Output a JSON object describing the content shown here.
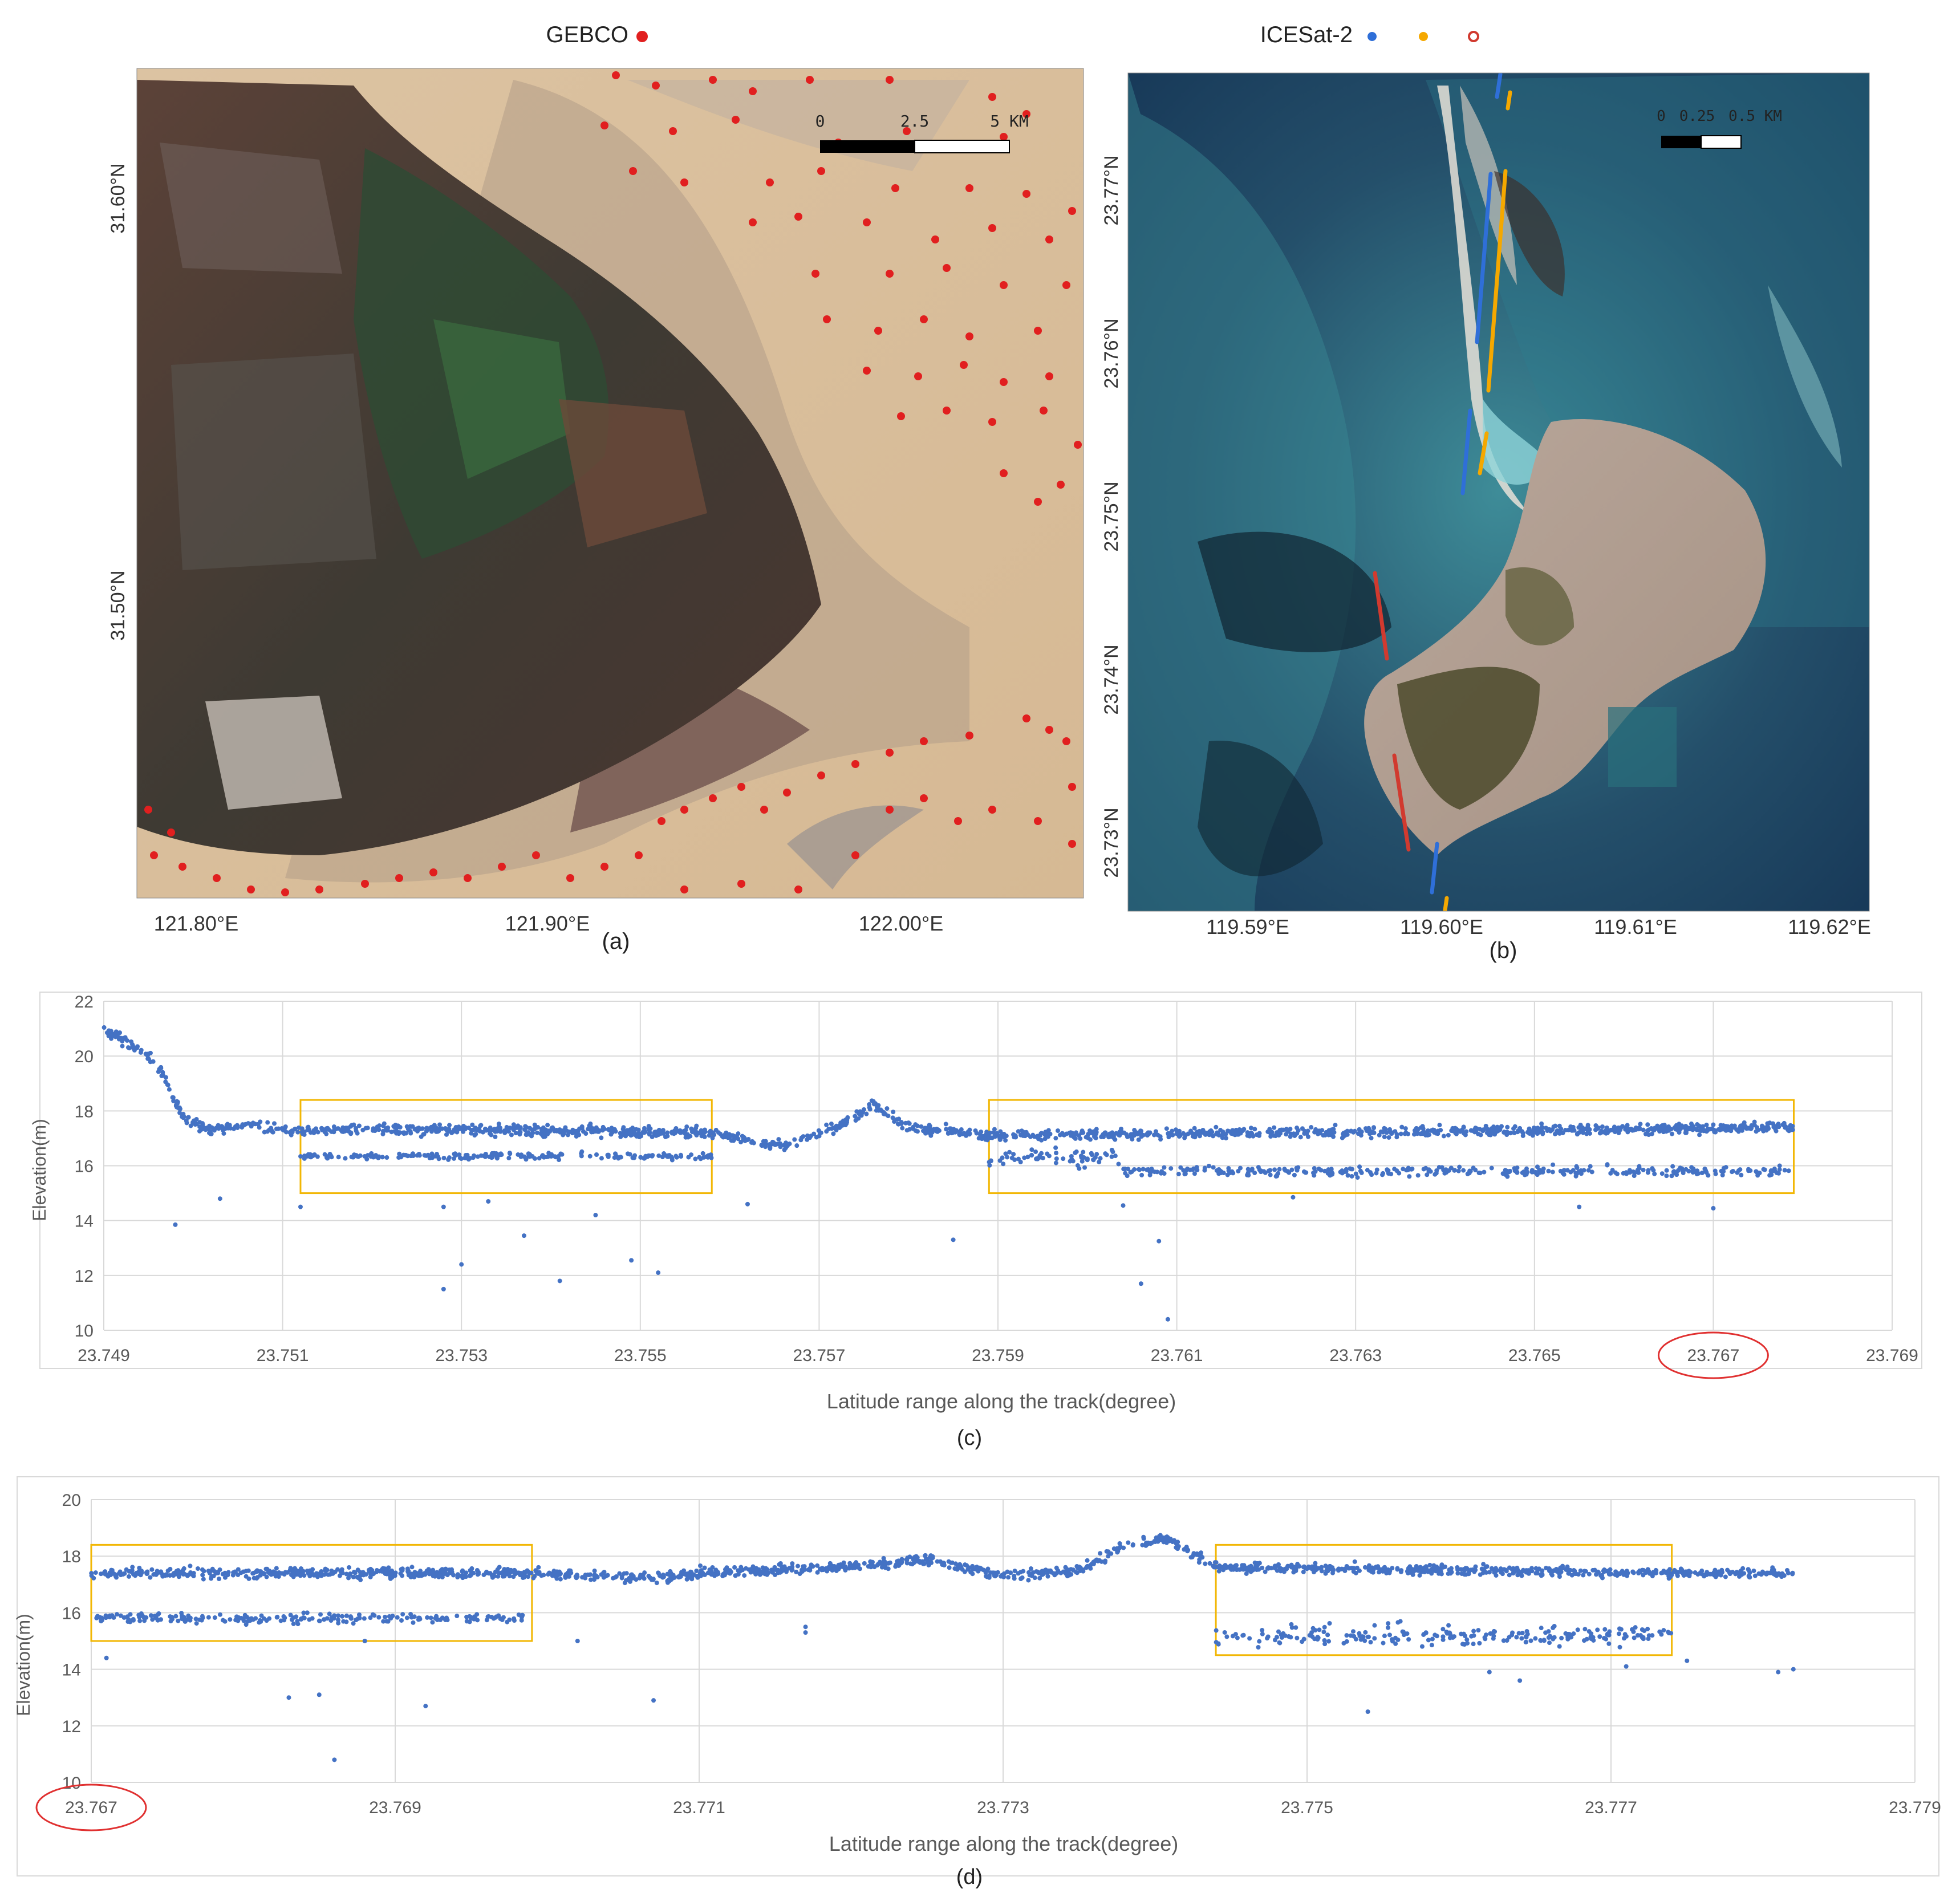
{
  "panel_a": {
    "legend_label": "GEBCO",
    "legend_color": "#e11f1f",
    "lat_labels": [
      "31.60°N",
      "31.50°N"
    ],
    "lon_labels": [
      "121.80°E",
      "121.90°E",
      "122.00°E"
    ],
    "scale_labels": [
      "0",
      "2.5",
      "5 KM"
    ],
    "caption": "(a)",
    "icons": [
      "red-dot-marker"
    ]
  },
  "panel_b": {
    "legend_label": "ICESat-2",
    "legend_colors": [
      "#2f6fd8",
      "#f5a800",
      "#d13a2f"
    ],
    "lat_labels": [
      "23.77°N",
      "23.76°N",
      "23.75°N",
      "23.74°N",
      "23.73°N"
    ],
    "lon_labels": [
      "119.59°E",
      "119.60°E",
      "119.61°E",
      "119.62°E"
    ],
    "scale_labels": [
      "0",
      "0.25",
      "0.5 KM"
    ],
    "caption": "(b)"
  },
  "chart_data": [
    {
      "type": "scatter",
      "caption": "(c)",
      "xlabel": "Latitude range along the track(degree)",
      "ylabel": "Elevation(m)",
      "xlim": [
        23.749,
        23.769
      ],
      "ylim": [
        10,
        22
      ],
      "x_ticks": [
        "23.749",
        "23.751",
        "23.753",
        "23.755",
        "23.757",
        "23.759",
        "23.761",
        "23.763",
        "23.765",
        "23.767",
        "23.769"
      ],
      "y_ticks": [
        "10",
        "12",
        "14",
        "16",
        "18",
        "20",
        "22"
      ],
      "grid": true,
      "point_color": "#4472c4",
      "highlight_boxes": [
        {
          "x": [
            23.7512,
            23.7558
          ],
          "y": [
            15.0,
            18.4
          ]
        },
        {
          "x": [
            23.7589,
            23.7679
          ],
          "y": [
            15.0,
            18.4
          ]
        }
      ],
      "circled_tick": "23.767",
      "profile": [
        [
          23.749,
          21.0
        ],
        [
          23.7493,
          20.4
        ],
        [
          23.7496,
          19.7
        ],
        [
          23.7499,
          17.7
        ],
        [
          23.7502,
          17.3
        ],
        [
          23.7506,
          17.5
        ],
        [
          23.751,
          17.3
        ],
        [
          23.7535,
          17.3
        ],
        [
          23.7558,
          17.2
        ],
        [
          23.7566,
          16.7
        ],
        [
          23.7572,
          17.4
        ],
        [
          23.7576,
          18.2
        ],
        [
          23.758,
          17.4
        ],
        [
          23.7589,
          17.1
        ],
        [
          23.7679,
          17.4
        ]
      ],
      "profile_spread": 0.32,
      "lower_band": [
        {
          "x": [
            23.7512,
            23.7558
          ],
          "y": 16.35,
          "spread": 0.2
        },
        {
          "x": [
            23.7589,
            23.7604
          ],
          "y": 16.3,
          "spread": 0.55
        },
        {
          "x": [
            23.7604,
            23.7679
          ],
          "y": 15.8,
          "spread": 0.3
        }
      ],
      "outliers": [
        [
          23.7498,
          13.85
        ],
        [
          23.7503,
          14.8
        ],
        [
          23.7512,
          14.5
        ],
        [
          23.7528,
          14.5
        ],
        [
          23.753,
          12.4
        ],
        [
          23.7528,
          11.5
        ],
        [
          23.7533,
          14.7
        ],
        [
          23.7537,
          13.45
        ],
        [
          23.7541,
          11.8
        ],
        [
          23.7545,
          14.2
        ],
        [
          23.7549,
          12.55
        ],
        [
          23.7552,
          12.1
        ],
        [
          23.7562,
          14.6
        ],
        [
          23.7585,
          13.3
        ],
        [
          23.7604,
          14.55
        ],
        [
          23.7606,
          11.7
        ],
        [
          23.7608,
          13.25
        ],
        [
          23.7609,
          10.4
        ],
        [
          23.7623,
          14.85
        ],
        [
          23.7655,
          14.5
        ],
        [
          23.767,
          14.45
        ]
      ]
    },
    {
      "type": "scatter",
      "caption": "(d)",
      "xlabel": "Latitude range along the track(degree)",
      "ylabel": "Elevation(m)",
      "xlim": [
        23.767,
        23.779
      ],
      "ylim": [
        10,
        20
      ],
      "x_ticks": [
        "23.767",
        "23.769",
        "23.771",
        "23.773",
        "23.775",
        "23.777",
        "23.779"
      ],
      "y_ticks": [
        "10",
        "12",
        "14",
        "16",
        "18",
        "20"
      ],
      "grid": true,
      "point_color": "#4472c4",
      "highlight_boxes": [
        {
          "x": [
            23.767,
            23.7699
          ],
          "y": [
            15.0,
            18.4
          ]
        },
        {
          "x": [
            23.7744,
            23.7774
          ],
          "y": [
            14.5,
            18.4
          ]
        }
      ],
      "circled_tick": "23.767",
      "profile": [
        [
          23.767,
          17.4
        ],
        [
          23.7699,
          17.4
        ],
        [
          23.7707,
          17.2
        ],
        [
          23.771,
          17.4
        ],
        [
          23.7722,
          17.7
        ],
        [
          23.7725,
          17.9
        ],
        [
          23.773,
          17.3
        ],
        [
          23.7735,
          17.5
        ],
        [
          23.7738,
          18.4
        ],
        [
          23.7741,
          18.6
        ],
        [
          23.7744,
          17.6
        ],
        [
          23.7774,
          17.4
        ],
        [
          23.7782,
          17.4
        ]
      ],
      "profile_spread": 0.3,
      "lower_band": [
        {
          "x": [
            23.767,
            23.7699
          ],
          "y": 15.8,
          "spread": 0.3
        },
        {
          "x": [
            23.7744,
            23.7774
          ],
          "y": 15.2,
          "spread": 0.6
        }
      ],
      "outliers": [
        [
          23.7671,
          14.4
        ],
        [
          23.7683,
          13.0
        ],
        [
          23.7685,
          13.1
        ],
        [
          23.7686,
          10.8
        ],
        [
          23.7688,
          15.0
        ],
        [
          23.7692,
          12.7
        ],
        [
          23.7702,
          15.0
        ],
        [
          23.7707,
          12.9
        ],
        [
          23.7717,
          15.5
        ],
        [
          23.7717,
          15.3
        ],
        [
          23.7754,
          12.5
        ],
        [
          23.7762,
          13.9
        ],
        [
          23.7764,
          13.6
        ],
        [
          23.7771,
          14.1
        ],
        [
          23.7775,
          14.3
        ],
        [
          23.7781,
          13.9
        ],
        [
          23.7782,
          14.0
        ]
      ]
    }
  ]
}
